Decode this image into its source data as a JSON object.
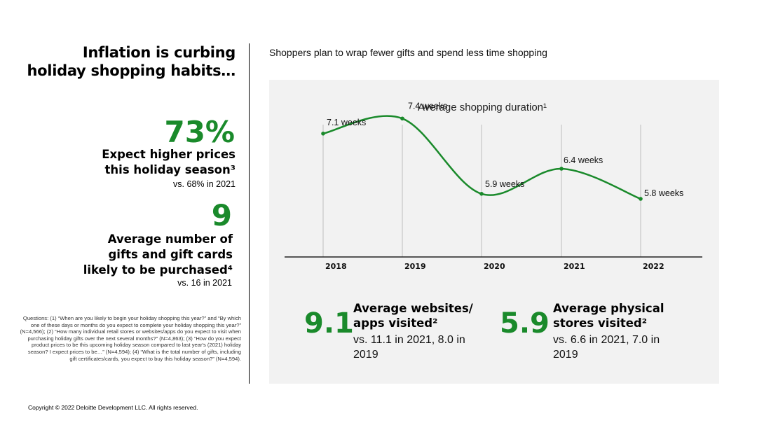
{
  "left": {
    "title_line1": "Inflation is curbing",
    "title_line2": "holiday shopping habits…",
    "stat1": {
      "value": "73%",
      "label_line1": "Expect higher prices",
      "label_line2": "this holiday season³",
      "sub": "vs. 68% in 2021"
    },
    "stat2": {
      "value": "9",
      "label_line1": "Average number of",
      "label_line2": "gifts and gift cards",
      "label_line3": "likely to be purchased⁴",
      "sub": "vs. 16 in 2021"
    },
    "questions": "Questions: (1) “When are you likely to begin your holiday shopping this year?” and “By which one of these days or months do you expect to complete your holiday shopping this year?” (N=4,566); (2) “How many individual retail stores or websites/apps do you expect to visit when purchasing holiday gifts over the next several months?” (N=4,863); (3) “How do you expect product prices to be this upcoming holiday season compared to last year's (2021) holiday season? I expect prices to be…” (N=4,594); (4) “What is the total number of gifts, including gift certificates/cards, you expect to buy this holiday season?” (N=4,594).",
    "copyright": "Copyright © 2022 Deloitte Development LLC. All rights reserved."
  },
  "right": {
    "heading": "Shoppers  plan to wrap fewer gifts and spend  less time shopping",
    "kpi1": {
      "value": "9.1",
      "title_line1": "Average websites/",
      "title_line2": "apps visited²",
      "sub_line1": "vs. 11.1 in 2021, 8.0 in",
      "sub_line2": "2019"
    },
    "kpi2": {
      "value": "5.9",
      "title_line1": "Average physical",
      "title_line2": "stores visited²",
      "sub_line1": "vs. 6.6 in 2021, 7.0 in",
      "sub_line2": "2019"
    }
  },
  "colors": {
    "accent_green": "#1a8a2b",
    "panel_bg": "#f2f2f2"
  },
  "chart_data": {
    "type": "line",
    "title": "Average shopping duration¹",
    "categories": [
      "2018",
      "2019",
      "2020",
      "2021",
      "2022"
    ],
    "series": [
      {
        "values": [
          7.1,
          7.4,
          5.9,
          6.4,
          5.8
        ],
        "labels": [
          "7.1 weeks",
          "7.4 weeks",
          "5.9 weeks",
          "6.4 weeks",
          "5.8 weeks"
        ]
      }
    ],
    "grid": "vertical",
    "line_color": "#1a8a2b"
  }
}
